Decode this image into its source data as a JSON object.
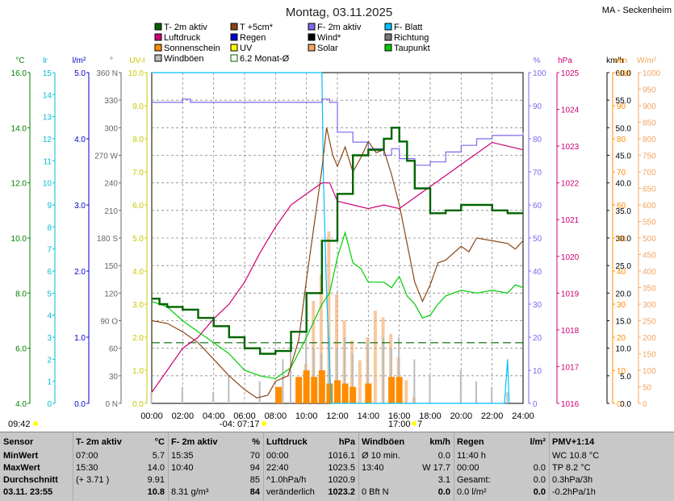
{
  "header": {
    "title": "Montag, 03.11.2025",
    "station": "MA - Seckenheim"
  },
  "legend": [
    {
      "label": "T- 2m aktiv",
      "color": "#006400"
    },
    {
      "label": "T +5cm*",
      "color": "#8b4513"
    },
    {
      "label": "F- 2m aktiv",
      "color": "#7b68ee"
    },
    {
      "label": "F- Blatt",
      "color": "#00bfff"
    },
    {
      "label": "Luftdruck",
      "color": "#cc0077"
    },
    {
      "label": "Regen",
      "color": "#0000cc"
    },
    {
      "label": "Wind*",
      "color": "#000000"
    },
    {
      "label": "Richtung",
      "color": "#777777"
    },
    {
      "label": "Sonnenschein",
      "color": "#ff8c00"
    },
    {
      "label": "UV",
      "color": "#ffff00"
    },
    {
      "label": "Solar",
      "color": "#f4a460"
    },
    {
      "label": "Taupunkt",
      "color": "#00cc00"
    },
    {
      "label": "Windböen",
      "color": "#bbbbbb"
    },
    {
      "label": "6.2 Monat-Ø",
      "color": "#006400"
    }
  ],
  "axes_left": [
    {
      "unit": "°C",
      "color": "#008000",
      "ticks": [
        "16.0",
        "14.0",
        "12.0",
        "10.0",
        "8.0",
        "6.0",
        "4.0"
      ]
    },
    {
      "unit": "lr",
      "color": "#00bcd4",
      "ticks": [
        "15",
        "14",
        "13",
        "12",
        "11",
        "10",
        "9",
        "8",
        "7",
        "6",
        "5",
        "4",
        "3",
        "2",
        "1",
        "0"
      ]
    },
    {
      "unit": "l/m²",
      "color": "#0000cc",
      "ticks": [
        "5.0",
        "4.0",
        "3.0",
        "2.0",
        "1.0",
        "0.0"
      ]
    },
    {
      "unit": "°",
      "color": "#666666",
      "ticks": [
        "360 N",
        "330",
        "300",
        "270 W",
        "240",
        "210",
        "180 S",
        "150",
        "120",
        "90 O",
        "60",
        "30",
        "0 N"
      ]
    },
    {
      "unit": "UV-I",
      "color": "#c8c800",
      "ticks": [
        "10.0",
        "9.0",
        "8.0",
        "7.0",
        "6.0",
        "5.0",
        "4.0",
        "3.0",
        "2.0",
        "1.0",
        "0.0"
      ]
    }
  ],
  "axes_right": [
    {
      "unit": "%",
      "color": "#7b68ee",
      "ticks": [
        "100",
        "90",
        "80",
        "70",
        "60",
        "50",
        "40",
        "30",
        "20",
        "10",
        "0"
      ]
    },
    {
      "unit": "hPa",
      "color": "#cc0077",
      "ticks": [
        "1025",
        "1024",
        "1023",
        "1022",
        "1021",
        "1020",
        "1019",
        "1018",
        "1017",
        "1016"
      ]
    },
    {
      "unit": "km/h",
      "color": "#000000",
      "ticks": [
        "60.0",
        "55.0",
        "50.0",
        "45.0",
        "40.0",
        "35.0",
        "30.0",
        "25.0",
        "20.0",
        "15.0",
        "10.0",
        "5.0",
        "0.0"
      ]
    },
    {
      "unit": "min",
      "color": "#ff8c00",
      "ticks": [
        "100",
        "90",
        "80",
        "70",
        "60",
        "50",
        "40",
        "30",
        "20",
        "10",
        "0"
      ]
    },
    {
      "unit": "W/m²",
      "color": "#f4a460",
      "ticks": [
        "1000",
        "950",
        "900",
        "850",
        "800",
        "750",
        "700",
        "650",
        "600",
        "550",
        "500",
        "450",
        "400",
        "350",
        "300",
        "250",
        "200",
        "150",
        "100",
        "50",
        "0"
      ]
    }
  ],
  "time_labels": [
    "00:00",
    "02:00",
    "04:00",
    "06:00",
    "08:00",
    "10:00",
    "12:00",
    "14:00",
    "16:00",
    "18:00",
    "20:00",
    "22:00",
    "24:00"
  ],
  "sun_events": {
    "now": "09:42",
    "sunrise": "-04: 07:17",
    "sunset": "17:00",
    "sunset_suffix": "7"
  },
  "chart_data": {
    "type": "line",
    "x_unit": "hour",
    "xlim": [
      0,
      24
    ],
    "series": [
      {
        "name": "T- 2m aktiv",
        "unit": "°C",
        "ylim": [
          4,
          16
        ],
        "color": "#006400",
        "points": [
          [
            0,
            7.8
          ],
          [
            0.5,
            7.6
          ],
          [
            1,
            7.5
          ],
          [
            2,
            7.4
          ],
          [
            3,
            7.1
          ],
          [
            4,
            6.8
          ],
          [
            5,
            6.4
          ],
          [
            6,
            6.0
          ],
          [
            7,
            5.8
          ],
          [
            8,
            5.9
          ],
          [
            9,
            6.6
          ],
          [
            10,
            8.0
          ],
          [
            11,
            9.9
          ],
          [
            12,
            11.6
          ],
          [
            13,
            13.0
          ],
          [
            14,
            13.2
          ],
          [
            15,
            13.6
          ],
          [
            15.5,
            14.0
          ],
          [
            16,
            13.5
          ],
          [
            16.5,
            12.8
          ],
          [
            17,
            11.8
          ],
          [
            18,
            10.9
          ],
          [
            18.5,
            10.9
          ],
          [
            19,
            11.0
          ],
          [
            20,
            11.2
          ],
          [
            21,
            11.2
          ],
          [
            22,
            11.0
          ],
          [
            23,
            10.9
          ],
          [
            24,
            10.9
          ]
        ]
      },
      {
        "name": "T +5cm*",
        "unit": "°C",
        "ylim": [
          4,
          16
        ],
        "color": "#8b4513",
        "points": [
          [
            0,
            7.0
          ],
          [
            1,
            6.9
          ],
          [
            2,
            6.6
          ],
          [
            3,
            6.2
          ],
          [
            4,
            5.6
          ],
          [
            5,
            5.0
          ],
          [
            6,
            4.5
          ],
          [
            6.8,
            4.2
          ],
          [
            7.5,
            4.3
          ],
          [
            8,
            4.8
          ],
          [
            8.8,
            5.0
          ],
          [
            9.5,
            6.3
          ],
          [
            10,
            8.5
          ],
          [
            10.5,
            10.5
          ],
          [
            11,
            12.5
          ],
          [
            11.3,
            14.0
          ],
          [
            11.7,
            13.0
          ],
          [
            12,
            12.6
          ],
          [
            12.5,
            13.3
          ],
          [
            13,
            12.4
          ],
          [
            13.5,
            12.9
          ],
          [
            14,
            13.5
          ],
          [
            14.5,
            13.1
          ],
          [
            15,
            13.2
          ],
          [
            15.5,
            12.3
          ],
          [
            16,
            11.2
          ],
          [
            16.5,
            9.8
          ],
          [
            17,
            8.4
          ],
          [
            17.5,
            7.7
          ],
          [
            18,
            8.3
          ],
          [
            18.5,
            9.1
          ],
          [
            19,
            9.2
          ],
          [
            20,
            9.7
          ],
          [
            20.5,
            9.5
          ],
          [
            21,
            10.0
          ],
          [
            22,
            9.9
          ],
          [
            23,
            9.8
          ],
          [
            23.5,
            9.6
          ],
          [
            24,
            9.9
          ]
        ]
      },
      {
        "name": "Taupunkt",
        "unit": "°C",
        "ylim": [
          4,
          16
        ],
        "color": "#00cc00",
        "points": [
          [
            0,
            7.7
          ],
          [
            1,
            7.5
          ],
          [
            2,
            7.0
          ],
          [
            3,
            6.6
          ],
          [
            4,
            6.2
          ],
          [
            5,
            5.8
          ],
          [
            6,
            5.2
          ],
          [
            7,
            5.0
          ],
          [
            8,
            4.9
          ],
          [
            9,
            5.3
          ],
          [
            10,
            6.4
          ],
          [
            11,
            7.6
          ],
          [
            11.5,
            8.0
          ],
          [
            12,
            9.3
          ],
          [
            12.5,
            10.2
          ],
          [
            13,
            9.1
          ],
          [
            13.5,
            8.9
          ],
          [
            14,
            8.4
          ],
          [
            15,
            8.4
          ],
          [
            15.5,
            8.2
          ],
          [
            16,
            8.6
          ],
          [
            16.5,
            7.9
          ],
          [
            17,
            7.6
          ],
          [
            17.5,
            7.1
          ],
          [
            18,
            7.2
          ],
          [
            18.5,
            7.6
          ],
          [
            19,
            7.9
          ],
          [
            20,
            8.1
          ],
          [
            21,
            8.0
          ],
          [
            22,
            8.1
          ],
          [
            23,
            8.0
          ],
          [
            23.5,
            8.3
          ],
          [
            24,
            8.2
          ]
        ]
      },
      {
        "name": "F- 2m aktiv",
        "unit": "%",
        "ylim": [
          0,
          100
        ],
        "color": "#7b68ee",
        "points": [
          [
            0,
            91
          ],
          [
            2,
            92
          ],
          [
            2.5,
            91
          ],
          [
            4,
            91
          ],
          [
            6,
            91
          ],
          [
            8,
            91
          ],
          [
            10,
            91
          ],
          [
            11,
            92
          ],
          [
            11.5,
            91
          ],
          [
            12,
            82
          ],
          [
            13,
            79
          ],
          [
            14,
            77
          ],
          [
            15,
            75
          ],
          [
            15.5,
            77
          ],
          [
            16,
            74
          ],
          [
            17,
            72
          ],
          [
            18,
            73
          ],
          [
            19,
            76
          ],
          [
            20,
            78
          ],
          [
            21,
            80
          ],
          [
            22,
            81
          ],
          [
            23,
            81
          ],
          [
            24,
            82
          ]
        ]
      },
      {
        "name": "Luftdruck",
        "unit": "hPa",
        "ylim": [
          1016,
          1025
        ],
        "color": "#cc0077",
        "points": [
          [
            0,
            1016.3
          ],
          [
            1,
            1016.9
          ],
          [
            2,
            1017.5
          ],
          [
            3,
            1017.8
          ],
          [
            4,
            1018.3
          ],
          [
            5,
            1018.7
          ],
          [
            6,
            1019.3
          ],
          [
            7,
            1020.1
          ],
          [
            8,
            1020.8
          ],
          [
            9,
            1021.4
          ],
          [
            10,
            1021.7
          ],
          [
            11,
            1022.0
          ],
          [
            11.5,
            1022.0
          ],
          [
            12,
            1021.5
          ],
          [
            13,
            1021.4
          ],
          [
            14,
            1021.3
          ],
          [
            15,
            1021.4
          ],
          [
            16,
            1021.3
          ],
          [
            17,
            1021.6
          ],
          [
            18,
            1021.9
          ],
          [
            19,
            1022.2
          ],
          [
            20,
            1022.5
          ],
          [
            21,
            1022.8
          ],
          [
            22,
            1023.1
          ],
          [
            23,
            1023.0
          ],
          [
            24,
            1022.9
          ]
        ]
      },
      {
        "name": "F- Blatt",
        "unit": "lr",
        "ylim": [
          0,
          15
        ],
        "color": "#00bfff",
        "points": [
          [
            0,
            15
          ],
          [
            11.0,
            15
          ],
          [
            11.1,
            10
          ],
          [
            11.3,
            5
          ],
          [
            11.6,
            0
          ],
          [
            22.8,
            0
          ],
          [
            23.0,
            2.0
          ],
          [
            23.1,
            0
          ]
        ]
      }
    ],
    "solar_bars_wm2": [
      [
        9.5,
        40
      ],
      [
        10.0,
        120
      ],
      [
        10.5,
        310
      ],
      [
        11.0,
        390
      ],
      [
        11.5,
        520
      ],
      [
        12.0,
        330
      ],
      [
        12.5,
        250
      ],
      [
        13.0,
        190
      ],
      [
        13.5,
        130
      ],
      [
        14.0,
        200
      ],
      [
        14.5,
        280
      ],
      [
        15.0,
        260
      ],
      [
        15.5,
        210
      ],
      [
        16.0,
        140
      ],
      [
        16.5,
        70
      ],
      [
        17.0,
        20
      ]
    ],
    "windgust_bars_kmh": [
      [
        0,
        2
      ],
      [
        2,
        3
      ],
      [
        4,
        2
      ],
      [
        5,
        5
      ],
      [
        7,
        4
      ],
      [
        8.5,
        8
      ],
      [
        9,
        11
      ],
      [
        10,
        13
      ],
      [
        10.5,
        10
      ],
      [
        11,
        9
      ],
      [
        11.5,
        12
      ],
      [
        12,
        10
      ],
      [
        12.5,
        12
      ],
      [
        13,
        9
      ],
      [
        14,
        11
      ],
      [
        15,
        12
      ],
      [
        15.5,
        10
      ],
      [
        16,
        12
      ],
      [
        17,
        8
      ],
      [
        18,
        5
      ],
      [
        20,
        6
      ],
      [
        21,
        4
      ],
      [
        22,
        3
      ],
      [
        23,
        2
      ]
    ],
    "sunshine_blocks_min": [
      [
        8.2,
        5
      ],
      [
        9.5,
        8
      ],
      [
        10.0,
        10
      ],
      [
        10.5,
        8
      ],
      [
        11.0,
        10
      ],
      [
        11.5,
        6
      ],
      [
        12.0,
        7
      ],
      [
        12.5,
        6
      ],
      [
        13.0,
        5
      ],
      [
        14.0,
        6
      ],
      [
        15.5,
        8
      ],
      [
        16.0,
        8
      ]
    ],
    "monthly_avg_celsius": 6.2
  },
  "stats": [
    {
      "title": "Sensor",
      "unit": "",
      "rows": [
        [
          "MinWert",
          ""
        ],
        [
          "MaxWert",
          ""
        ],
        [
          "Durchschnitt",
          ""
        ],
        [
          "03.11. 23:55",
          ""
        ]
      ]
    },
    {
      "title": "T- 2m aktiv",
      "unit": "°C",
      "rows": [
        [
          "07:00",
          "5.7"
        ],
        [
          "15:30",
          "14.0"
        ],
        [
          "(+ 3.71 )",
          "9.91"
        ],
        [
          "",
          "10.8"
        ]
      ]
    },
    {
      "title": "F- 2m aktiv",
      "unit": "%",
      "rows": [
        [
          "15:35",
          "70"
        ],
        [
          "10:40",
          "94"
        ],
        [
          "",
          "85"
        ],
        [
          "8.31 g/m³",
          "84"
        ]
      ]
    },
    {
      "title": "Luftdruck",
      "unit": "hPa",
      "rows": [
        [
          "00:00",
          "1016.1"
        ],
        [
          "22:40",
          "1023.5"
        ],
        [
          "^1.0hPa/h",
          "1020.9"
        ],
        [
          "veränderlich",
          "1023.2"
        ]
      ]
    },
    {
      "title": "Windböen",
      "unit": "km/h",
      "rows": [
        [
          "Ø 10 min.",
          "0.0"
        ],
        [
          "13:40",
          "W 17.7"
        ],
        [
          "",
          "3.1"
        ],
        [
          "0 Bft N",
          "0.0"
        ]
      ]
    },
    {
      "title": "Regen",
      "unit": "l/m²",
      "rows": [
        [
          "11:40 h",
          ""
        ],
        [
          "00:00",
          "0.0"
        ],
        [
          "Gesamt:",
          "0.0"
        ],
        [
          "0.0 l/m²",
          "0.0"
        ]
      ]
    },
    {
      "title": "PMV+1:14",
      "unit": "",
      "rows": [
        [
          "WC 10.8 °C",
          ""
        ],
        [
          "TP 8.2 °C",
          ""
        ],
        [
          "0.3hPa/3h",
          ""
        ],
        [
          "-0.2hPa/1h",
          ""
        ]
      ]
    }
  ]
}
